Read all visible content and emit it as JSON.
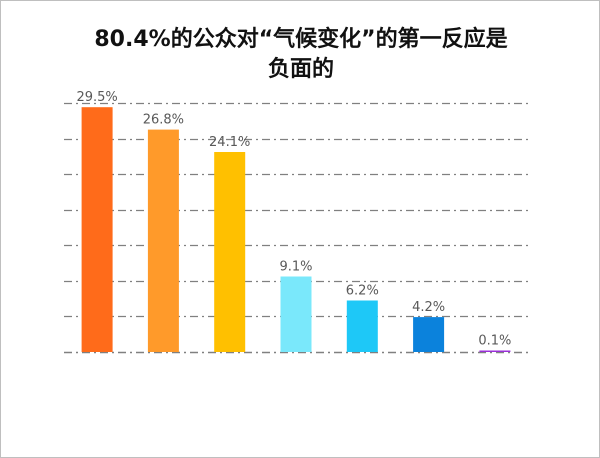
{
  "chart_data": {
    "type": "bar",
    "title": "80.4%的公众对“气候变化”的第一反应是负面的",
    "title_line1": "80.4%的公众对“气候变化”的第一反应是",
    "title_line2": "负面的",
    "categories": [],
    "values": [
      29.5,
      26.8,
      24.1,
      9.1,
      6.2,
      4.2,
      0.1
    ],
    "labels": [
      "29.5%",
      "26.8%",
      "24.1%",
      "9.1%",
      "6.2%",
      "4.2%",
      "0.1%"
    ],
    "colors": [
      "#ff6b1a",
      "#ff9a2a",
      "#ffc000",
      "#7ae8fb",
      "#1ec8f7",
      "#0b82dc",
      "#9b30d9"
    ],
    "ylim": [
      0,
      30
    ],
    "grid": true,
    "grid_color": "#808080",
    "xlabel": "",
    "ylabel": ""
  }
}
